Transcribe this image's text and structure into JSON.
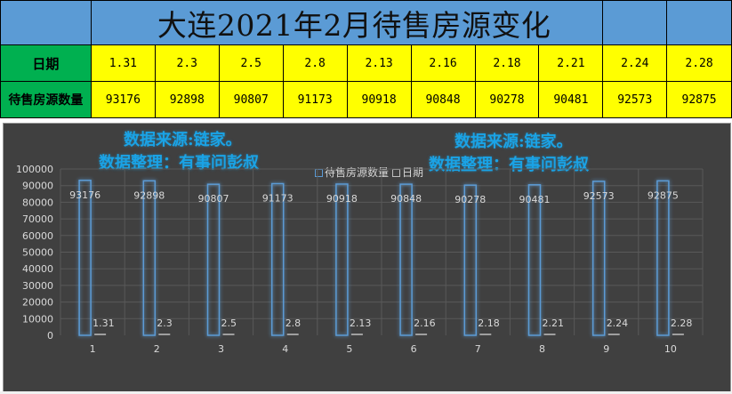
{
  "sheet": {
    "title": "大连2021年2月待售房源变化",
    "row_labels": {
      "date": "日期",
      "count": "待售房源数量"
    },
    "dates": [
      "1.31",
      "2.3",
      "2.5",
      "2.8",
      "2.13",
      "2.16",
      "2.18",
      "2.21",
      "2.24",
      "2.28"
    ],
    "counts": [
      "93176",
      "92898",
      "90807",
      "91173",
      "90918",
      "90848",
      "90278",
      "90481",
      "92573",
      "92875"
    ]
  },
  "annotations": {
    "source": "数据来源:链家。",
    "editor": "数据整理：有事问彭叔"
  },
  "legend": {
    "series1": "待售房源数量",
    "series2": "日期"
  },
  "colors": {
    "title_bg": "#5b9bd5",
    "header_bg": "#00b050",
    "value_bg": "#ffff00",
    "chart_bg": "#404040",
    "bar_outline": "#5b9bd5",
    "annotation": "#1aa3e6"
  },
  "chart_data": {
    "type": "bar",
    "title": "",
    "categories": [
      "1",
      "2",
      "3",
      "4",
      "5",
      "6",
      "7",
      "8",
      "9",
      "10"
    ],
    "series": [
      {
        "name": "待售房源数量",
        "values": [
          93176,
          92898,
          90807,
          91173,
          90918,
          90848,
          90278,
          90481,
          92573,
          92875
        ]
      },
      {
        "name": "日期",
        "values": [
          1.31,
          2.3,
          2.5,
          2.8,
          2.13,
          2.16,
          2.18,
          2.21,
          2.24,
          2.28
        ]
      }
    ],
    "xlabel": "",
    "ylabel": "",
    "ylim": [
      0,
      100000
    ],
    "yticks": [
      0,
      10000,
      20000,
      30000,
      40000,
      50000,
      60000,
      70000,
      80000,
      90000,
      100000
    ],
    "grid": true,
    "legend_position": "top",
    "data_labels": true
  }
}
